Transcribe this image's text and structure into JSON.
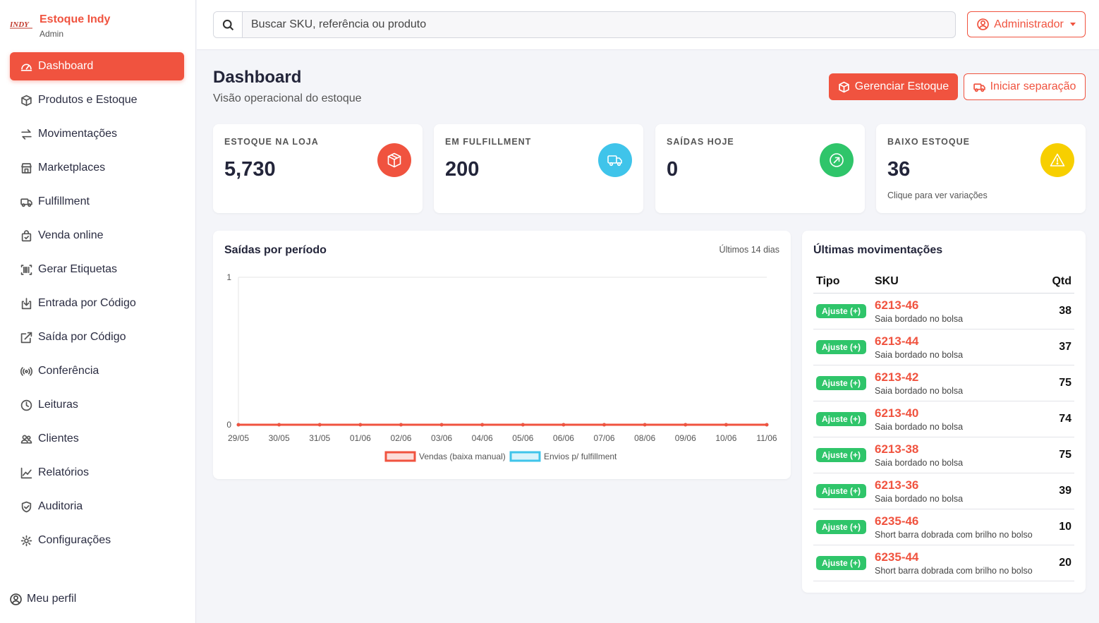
{
  "brand": {
    "name": "Estoque Indy",
    "role": "Admin",
    "logo_text": "INDY"
  },
  "sidebar": {
    "items": [
      {
        "label": "Dashboard",
        "icon": "gauge-icon"
      },
      {
        "label": "Produtos e Estoque",
        "icon": "box-icon"
      },
      {
        "label": "Movimentações",
        "icon": "arrows-icon"
      },
      {
        "label": "Marketplaces",
        "icon": "store-icon"
      },
      {
        "label": "Fulfillment",
        "icon": "truck-icon"
      },
      {
        "label": "Venda online",
        "icon": "bag-icon"
      },
      {
        "label": "Gerar Etiquetas",
        "icon": "barcode-icon"
      },
      {
        "label": "Entrada por Código",
        "icon": "box-arrow-in-icon"
      },
      {
        "label": "Saída por Código",
        "icon": "box-arrow-out-icon"
      },
      {
        "label": "Conferência",
        "icon": "broadcast-icon"
      },
      {
        "label": "Leituras",
        "icon": "clock-icon"
      },
      {
        "label": "Clientes",
        "icon": "people-icon"
      },
      {
        "label": "Relatórios",
        "icon": "graph-icon"
      },
      {
        "label": "Auditoria",
        "icon": "shield-icon"
      },
      {
        "label": "Configurações",
        "icon": "gear-icon"
      }
    ],
    "profile_label": "Meu perfil"
  },
  "search": {
    "placeholder": "Buscar SKU, referência ou produto",
    "value": ""
  },
  "user_menu": {
    "label": "Administrador"
  },
  "header": {
    "title": "Dashboard",
    "subtitle": "Visão operacional do estoque",
    "primary_button": "Gerenciar Estoque",
    "secondary_button": "Iniciar separação"
  },
  "kpis": [
    {
      "label": "ESTOQUE NA LOJA",
      "value": "5,730",
      "note": "",
      "color": "#f0533f"
    },
    {
      "label": "EM FULFILLMENT",
      "value": "200",
      "note": "",
      "color": "#3fc4ea"
    },
    {
      "label": "SAÍDAS HOJE",
      "value": "0",
      "note": "",
      "color": "#2fc56a"
    },
    {
      "label": "BAIXO ESTOQUE",
      "value": "36",
      "note": "Clique para ver variações",
      "color": "#f7cf00"
    }
  ],
  "chart": {
    "title": "Saídas por período",
    "range_label": "Últimos 14 dias"
  },
  "chart_data": {
    "type": "line",
    "x": [
      "29/05",
      "30/05",
      "31/05",
      "01/06",
      "02/06",
      "03/06",
      "04/06",
      "05/06",
      "06/06",
      "07/06",
      "08/06",
      "09/06",
      "10/06",
      "11/06"
    ],
    "series": [
      {
        "name": "Vendas (baixa manual)",
        "color": "#f0533f",
        "values": [
          0,
          0,
          0,
          0,
          0,
          0,
          0,
          0,
          0,
          0,
          0,
          0,
          0,
          0
        ]
      },
      {
        "name": "Envios p/ fulfillment",
        "color": "#3fc4ea",
        "values": [
          0,
          0,
          0,
          0,
          0,
          0,
          0,
          0,
          0,
          0,
          0,
          0,
          0,
          0
        ]
      }
    ],
    "ylim": [
      0,
      1
    ],
    "yticks": [
      "0",
      "1"
    ],
    "legend": "bottom",
    "grid": true
  },
  "movements": {
    "title": "Últimas movimentações",
    "headers": {
      "tipo": "Tipo",
      "sku": "SKU",
      "qtd": "Qtd"
    },
    "rows": [
      {
        "tipo": "Ajuste (+)",
        "sku": "6213-46",
        "desc": "Saia bordado no bolsa",
        "qtd": "38"
      },
      {
        "tipo": "Ajuste (+)",
        "sku": "6213-44",
        "desc": "Saia bordado no bolsa",
        "qtd": "37"
      },
      {
        "tipo": "Ajuste (+)",
        "sku": "6213-42",
        "desc": "Saia bordado no bolsa",
        "qtd": "75"
      },
      {
        "tipo": "Ajuste (+)",
        "sku": "6213-40",
        "desc": "Saia bordado no bolsa",
        "qtd": "74"
      },
      {
        "tipo": "Ajuste (+)",
        "sku": "6213-38",
        "desc": "Saia bordado no bolsa",
        "qtd": "75"
      },
      {
        "tipo": "Ajuste (+)",
        "sku": "6213-36",
        "desc": "Saia bordado no bolsa",
        "qtd": "39"
      },
      {
        "tipo": "Ajuste (+)",
        "sku": "6235-46",
        "desc": "Short barra dobrada com brilho no bolso",
        "qtd": "10"
      },
      {
        "tipo": "Ajuste (+)",
        "sku": "6235-44",
        "desc": "Short barra dobrada com brilho no bolso",
        "qtd": "20"
      }
    ]
  }
}
